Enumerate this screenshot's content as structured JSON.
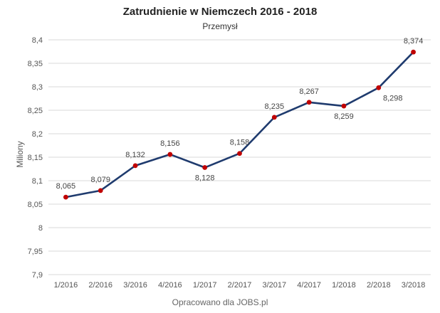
{
  "chart_data": {
    "type": "line",
    "title": "Zatrudnienie w Niemczech 2016 - 2018",
    "subtitle": "Przemysł",
    "ylabel": "Miliony",
    "xlabel": "",
    "source_note": "Opracowano dla JOBS.pl",
    "categories": [
      "1/2016",
      "2/2016",
      "3/2016",
      "4/2016",
      "1/2017",
      "2/2017",
      "3/2017",
      "4/2017",
      "1/2018",
      "2/2018",
      "3/2018"
    ],
    "series": [
      {
        "values": [
          8.065,
          8.079,
          8.132,
          8.156,
          8.128,
          8.158,
          8.235,
          8.267,
          8.259,
          8.298,
          8.374
        ],
        "labels": [
          "8,065",
          "8,079",
          "8,132",
          "8,156",
          "8,128",
          "8,158",
          "8,235",
          "8,267",
          "8,259",
          "8,298",
          "8,374"
        ]
      }
    ],
    "ylim": [
      7.9,
      8.4
    ],
    "yticks": [
      7.9,
      7.95,
      8.0,
      8.05,
      8.1,
      8.15,
      8.2,
      8.25,
      8.3,
      8.35,
      8.4
    ],
    "ytick_labels": [
      "7,9",
      "7,95",
      "8",
      "8,05",
      "8,1",
      "8,15",
      "8,2",
      "8,25",
      "8,3",
      "8,35",
      "8,4"
    ],
    "grid": true,
    "legend": "none",
    "colors": {
      "line": "#1f3b6e",
      "marker": "#c00000",
      "grid": "#d9d9d9"
    }
  }
}
